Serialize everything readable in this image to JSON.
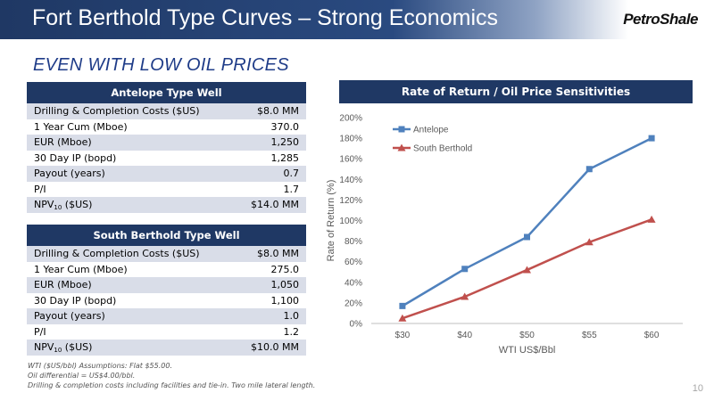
{
  "header": {
    "title": "Fort Berthold Type Curves – Strong Economics",
    "logo_text": "PetroShale"
  },
  "subtitle": "EVEN WITH LOW OIL PRICES",
  "antelope_table": {
    "title": "Antelope Type Well",
    "rows": [
      {
        "label": "Drilling & Completion Costs ($US)",
        "value": "$8.0 MM"
      },
      {
        "label": "1 Year Cum (Mboe)",
        "value": "370.0"
      },
      {
        "label": "EUR (Mboe)",
        "value": "1,250"
      },
      {
        "label": "30 Day IP (bopd)",
        "value": "1,285"
      },
      {
        "label": "Payout (years)",
        "value": "0.7"
      },
      {
        "label": "P/I",
        "value": "1.7"
      },
      {
        "label_main": "NPV",
        "label_sub": "10",
        "label_rest": " ($US)",
        "value": "$14.0 MM"
      }
    ]
  },
  "south_table": {
    "title": "South Berthold Type Well",
    "rows": [
      {
        "label": "Drilling & Completion Costs ($US)",
        "value": "$8.0 MM"
      },
      {
        "label": "1 Year Cum (Mboe)",
        "value": "275.0"
      },
      {
        "label": "EUR (Mboe)",
        "value": "1,050"
      },
      {
        "label": "30 Day IP (bopd)",
        "value": "1,100"
      },
      {
        "label": "Payout (years)",
        "value": "1.0"
      },
      {
        "label": "P/I",
        "value": "1.2"
      },
      {
        "label_main": "NPV",
        "label_sub": "10",
        "label_rest": " ($US)",
        "value": "$10.0 MM"
      }
    ]
  },
  "footnotes": [
    "WTI ($US/bbl) Assumptions:  Flat $55.00.",
    "Oil differential = US$4.00/bbl.",
    "Drilling & completion costs including facilities and tie-in.  Two mile lateral length."
  ],
  "page_number": "10",
  "chart_title": "Rate of Return / Oil Price Sensitivities",
  "chart_data": {
    "type": "line",
    "categories": [
      "$30",
      "$40",
      "$50",
      "$55",
      "$60"
    ],
    "series": [
      {
        "name": "Antelope",
        "values": [
          17,
          53,
          84,
          150,
          180
        ],
        "color": "#4f81bd",
        "marker": "square"
      },
      {
        "name": "South Berthold",
        "values": [
          5,
          26,
          52,
          79,
          101
        ],
        "color": "#c0504d",
        "marker": "triangle"
      }
    ],
    "yticks": [
      "0%",
      "20%",
      "40%",
      "60%",
      "80%",
      "100%",
      "120%",
      "140%",
      "160%",
      "180%",
      "200%"
    ],
    "ylim": [
      0,
      200
    ],
    "xlabel": "WTI US$/Bbl",
    "ylabel": "Rate of Return (%)",
    "legend_position": "top-left",
    "grid": false
  }
}
